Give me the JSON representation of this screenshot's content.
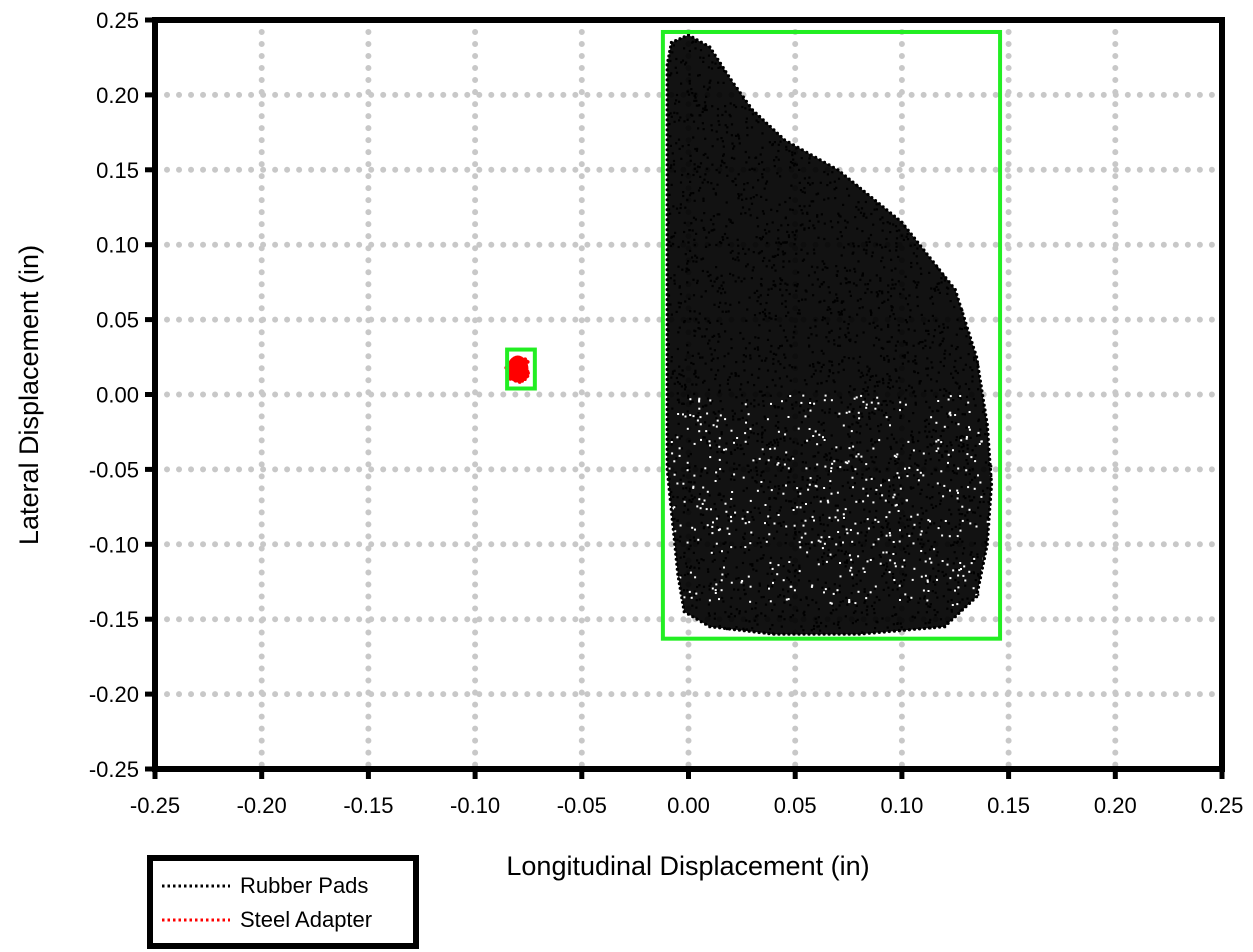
{
  "chart_data": {
    "type": "scatter",
    "title": "",
    "xlabel": "Longitudinal Displacement (in)",
    "ylabel": "Lateral Displacement (in)",
    "xlim": [
      -0.25,
      0.25
    ],
    "ylim": [
      -0.25,
      0.25
    ],
    "x_ticks": [
      "-0.25",
      "-0.20",
      "-0.15",
      "-0.10",
      "-0.05",
      "0.00",
      "0.05",
      "0.10",
      "0.15",
      "0.20",
      "0.25"
    ],
    "y_ticks": [
      "0.25",
      "0.20",
      "0.15",
      "0.10",
      "0.05",
      "0.00",
      "-0.05",
      "-0.10",
      "-0.15",
      "-0.20",
      "-0.25"
    ],
    "grid": true,
    "grid_style": "dotted",
    "legend_position": "below-left",
    "series": [
      {
        "name": "Rubber Pads",
        "color": "#000000",
        "line_style": "dotted",
        "outline": [
          [
            -0.008,
            0.235
          ],
          [
            0.0,
            0.24
          ],
          [
            0.01,
            0.232
          ],
          [
            0.02,
            0.21
          ],
          [
            0.03,
            0.19
          ],
          [
            0.045,
            0.17
          ],
          [
            0.07,
            0.15
          ],
          [
            0.1,
            0.115
          ],
          [
            0.125,
            0.07
          ],
          [
            0.135,
            0.025
          ],
          [
            0.14,
            -0.02
          ],
          [
            0.142,
            -0.06
          ],
          [
            0.14,
            -0.1
          ],
          [
            0.135,
            -0.135
          ],
          [
            0.12,
            -0.155
          ],
          [
            0.08,
            -0.16
          ],
          [
            0.04,
            -0.16
          ],
          [
            0.01,
            -0.155
          ],
          [
            -0.002,
            -0.145
          ],
          [
            -0.005,
            -0.12
          ],
          [
            -0.01,
            -0.05
          ],
          [
            -0.01,
            0.05
          ],
          [
            -0.01,
            0.15
          ],
          [
            -0.01,
            0.22
          ]
        ],
        "bounding_box": {
          "xmin": -0.012,
          "xmax": 0.146,
          "ymin": -0.163,
          "ymax": 0.242
        }
      },
      {
        "name": "Steel Adapter",
        "color": "#ff0000",
        "line_style": "dotted",
        "center": [
          -0.08,
          0.017
        ],
        "half_extent": [
          0.005,
          0.009
        ],
        "bounding_box": {
          "xmin": -0.085,
          "xmax": -0.072,
          "ymin": 0.004,
          "ymax": 0.03
        }
      }
    ],
    "highlight_boxes_color": "#22ee22"
  }
}
